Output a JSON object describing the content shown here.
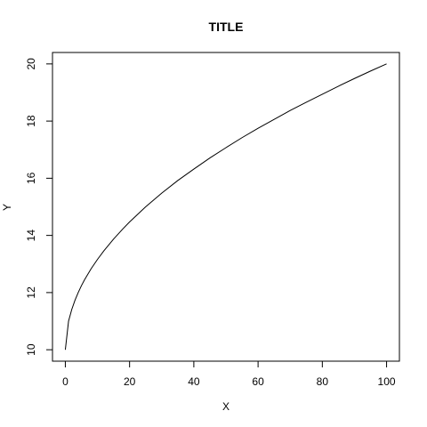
{
  "chart_data": {
    "type": "line",
    "title": "TITLE",
    "xlabel": "X",
    "ylabel": "Y",
    "xlim": [
      -4,
      104
    ],
    "ylim": [
      9.6,
      20.4
    ],
    "xticks": [
      0,
      20,
      40,
      60,
      80,
      100
    ],
    "yticks": [
      10,
      12,
      14,
      16,
      18,
      20
    ],
    "grid": false,
    "series": [
      {
        "name": "Y",
        "x": [
          0,
          1,
          2,
          3,
          4,
          5,
          6,
          8,
          10,
          12,
          15,
          18,
          20,
          25,
          30,
          35,
          40,
          45,
          50,
          55,
          60,
          65,
          70,
          75,
          80,
          85,
          90,
          95,
          100
        ],
        "y": [
          10.0,
          11.0,
          11.41,
          11.73,
          12.0,
          12.24,
          12.45,
          12.83,
          13.16,
          13.46,
          13.87,
          14.24,
          14.47,
          15.0,
          15.48,
          15.92,
          16.32,
          16.71,
          17.07,
          17.42,
          17.75,
          18.06,
          18.37,
          18.66,
          18.94,
          19.22,
          19.49,
          19.75,
          20.0
        ]
      }
    ]
  }
}
